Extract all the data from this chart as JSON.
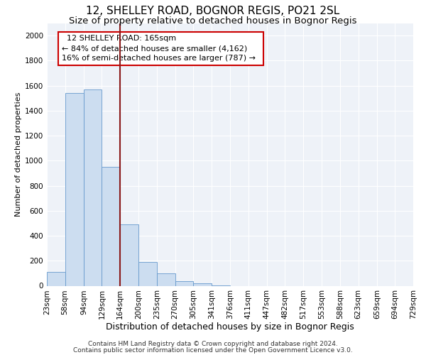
{
  "title": "12, SHELLEY ROAD, BOGNOR REGIS, PO21 2SL",
  "subtitle": "Size of property relative to detached houses in Bognor Regis",
  "xlabel": "Distribution of detached houses by size in Bognor Regis",
  "ylabel": "Number of detached properties",
  "footer_line1": "Contains HM Land Registry data © Crown copyright and database right 2024.",
  "footer_line2": "Contains public sector information licensed under the Open Government Licence v3.0.",
  "annotation_title": "12 SHELLEY ROAD: 165sqm",
  "annotation_line1": "← 84% of detached houses are smaller (4,162)",
  "annotation_line2": "16% of semi-detached houses are larger (787) →",
  "bar_color": "#ccddf0",
  "bar_edge_color": "#6699cc",
  "vline_color": "#8b1a1a",
  "vline_x": 164,
  "bin_edges": [
    23,
    58,
    94,
    129,
    164,
    200,
    235,
    270,
    305,
    341,
    376,
    411,
    447,
    482,
    517,
    553,
    588,
    623,
    659,
    694,
    729
  ],
  "bar_heights": [
    110,
    1540,
    1570,
    950,
    490,
    190,
    100,
    35,
    20,
    5,
    0,
    0,
    0,
    0,
    0,
    0,
    0,
    0,
    0,
    0
  ],
  "ylim": [
    0,
    2100
  ],
  "yticks": [
    0,
    200,
    400,
    600,
    800,
    1000,
    1200,
    1400,
    1600,
    1800,
    2000
  ],
  "annotation_box_color": "white",
  "annotation_box_edge": "#cc0000",
  "title_fontsize": 11,
  "subtitle_fontsize": 9.5,
  "xlabel_fontsize": 9,
  "ylabel_fontsize": 8,
  "tick_fontsize": 7.5,
  "annotation_fontsize": 8,
  "footer_fontsize": 6.5
}
